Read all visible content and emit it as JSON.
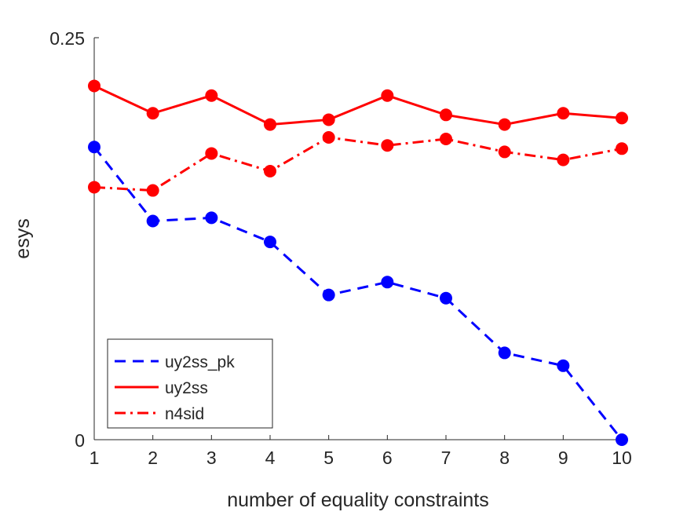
{
  "chart_data": {
    "type": "line",
    "title": "",
    "xlabel": "number of equality constraints",
    "ylabel": "esys",
    "xlim": [
      1,
      10
    ],
    "ylim": [
      0,
      0.25
    ],
    "x": [
      1,
      2,
      3,
      4,
      5,
      6,
      7,
      8,
      9,
      10
    ],
    "xticks": [
      "1",
      "2",
      "3",
      "4",
      "5",
      "6",
      "7",
      "8",
      "9",
      "10"
    ],
    "yticks": [
      {
        "value": 0,
        "label": "0"
      },
      {
        "value": 0.25,
        "label": "0.25"
      }
    ],
    "grid": false,
    "legend_position": "bottom-left",
    "series": [
      {
        "name": "uy2ss_pk",
        "color": "#0000ff",
        "style": "dashed",
        "values": [
          0.182,
          0.136,
          0.138,
          0.123,
          0.09,
          0.098,
          0.088,
          0.054,
          0.046,
          0.0
        ]
      },
      {
        "name": "uy2ss",
        "color": "#ff0000",
        "style": "solid",
        "values": [
          0.22,
          0.203,
          0.214,
          0.196,
          0.199,
          0.214,
          0.202,
          0.196,
          0.203,
          0.2
        ]
      },
      {
        "name": "n4sid",
        "color": "#ff0000",
        "style": "dashdot",
        "values": [
          0.157,
          0.155,
          0.178,
          0.167,
          0.188,
          0.183,
          0.187,
          0.179,
          0.174,
          0.181
        ]
      }
    ]
  }
}
